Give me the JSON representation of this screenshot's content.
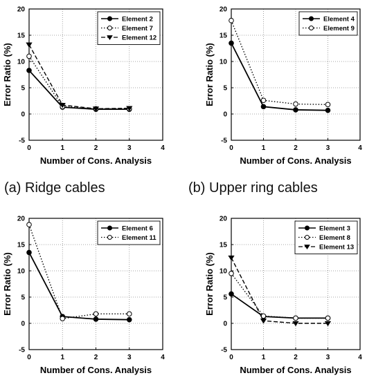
{
  "chart_data": [
    {
      "type": "line",
      "caption": "(a)  Ridge  cables",
      "xlabel": "Number of Cons. Analysis",
      "ylabel": "Error Ratio (%)",
      "xlim": [
        0,
        4
      ],
      "ylim": [
        -5,
        20
      ],
      "xticks": [
        0,
        1,
        2,
        3,
        4
      ],
      "yticks": [
        -5,
        0,
        5,
        10,
        15,
        20
      ],
      "grid": true,
      "legend_position": "top-right",
      "x": [
        0,
        1,
        2,
        3
      ],
      "series": [
        {
          "name": "Element 2",
          "values": [
            8.3,
            1.3,
            0.9,
            0.9
          ],
          "style": "solid",
          "marker": "filled-circle"
        },
        {
          "name": "Element 7",
          "values": [
            11.0,
            1.4,
            1.0,
            1.0
          ],
          "style": "dotted",
          "marker": "open-circle"
        },
        {
          "name": "Element 12",
          "values": [
            13.2,
            1.7,
            1.0,
            1.1
          ],
          "style": "dashed",
          "marker": "filled-triangle"
        }
      ]
    },
    {
      "type": "line",
      "caption": "(b)  Upper  ring  cables",
      "xlabel": "Number of Cons. Analysis",
      "ylabel": "Error Ratio (%)",
      "xlim": [
        0,
        4
      ],
      "ylim": [
        -5,
        20
      ],
      "xticks": [
        0,
        1,
        2,
        3,
        4
      ],
      "yticks": [
        -5,
        0,
        5,
        10,
        15,
        20
      ],
      "grid": true,
      "legend_position": "top-right",
      "x": [
        0,
        1,
        2,
        3
      ],
      "series": [
        {
          "name": "Element 4",
          "values": [
            13.5,
            1.4,
            0.8,
            0.7
          ],
          "style": "solid",
          "marker": "filled-circle"
        },
        {
          "name": "Element 9",
          "values": [
            17.8,
            2.6,
            1.9,
            1.8
          ],
          "style": "dotted",
          "marker": "open-circle"
        }
      ]
    },
    {
      "type": "line",
      "caption": "",
      "xlabel": "Number of Cons. Analysis",
      "ylabel": "Error Ratio (%)",
      "xlim": [
        0,
        4
      ],
      "ylim": [
        -5,
        20
      ],
      "xticks": [
        0,
        1,
        2,
        3,
        4
      ],
      "yticks": [
        -5,
        0,
        5,
        10,
        15,
        20
      ],
      "grid": true,
      "legend_position": "top-right",
      "x": [
        0,
        1,
        2,
        3
      ],
      "series": [
        {
          "name": "Element 6",
          "values": [
            13.5,
            1.3,
            0.8,
            0.7
          ],
          "style": "solid",
          "marker": "filled-circle"
        },
        {
          "name": "Element 11",
          "values": [
            18.8,
            0.9,
            1.8,
            1.8
          ],
          "style": "dotted",
          "marker": "open-circle"
        }
      ]
    },
    {
      "type": "line",
      "caption": "",
      "xlabel": "Number of Cons. Analysis",
      "ylabel": "Error Ratio (%)",
      "xlim": [
        0,
        4
      ],
      "ylim": [
        -5,
        20
      ],
      "xticks": [
        0,
        1,
        2,
        3,
        4
      ],
      "yticks": [
        -5,
        0,
        5,
        10,
        15,
        20
      ],
      "grid": true,
      "legend_position": "top-right",
      "x": [
        0,
        1,
        2,
        3
      ],
      "series": [
        {
          "name": "Element 3",
          "values": [
            5.6,
            1.3,
            1.0,
            1.0
          ],
          "style": "solid",
          "marker": "filled-circle"
        },
        {
          "name": "Element 8",
          "values": [
            9.5,
            1.4,
            1.0,
            1.0
          ],
          "style": "dotted",
          "marker": "open-circle"
        },
        {
          "name": "Element 13",
          "values": [
            12.5,
            0.5,
            0.0,
            0.0
          ],
          "style": "dashed",
          "marker": "filled-triangle"
        }
      ]
    }
  ]
}
